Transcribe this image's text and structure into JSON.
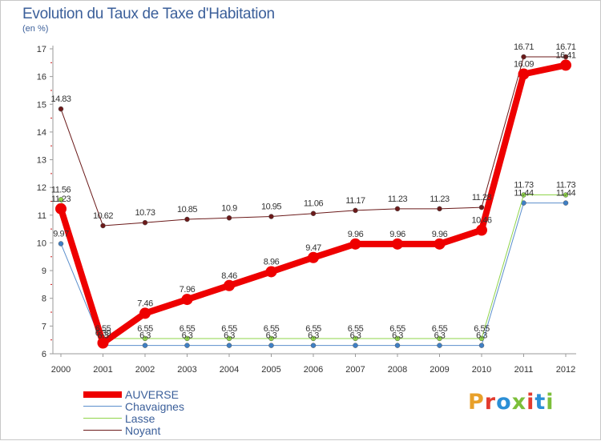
{
  "title": "Evolution du Taux de Taxe d'Habitation",
  "subtitle": "(en %)",
  "logo_text": "Proxiti",
  "logo_colors": [
    "#e8a02a",
    "#e23b2e",
    "#2b8fd6",
    "#7cbf3a",
    "#e23b2e",
    "#2b8fd6",
    "#7cbf3a"
  ],
  "chart_data": {
    "type": "line",
    "title": "Evolution du Taux de Taxe d'Habitation",
    "ylabel": "(en %)",
    "xlabel": "",
    "ylim": [
      6,
      17
    ],
    "yticks": [
      6,
      7,
      8,
      9,
      10,
      11,
      12,
      13,
      14,
      15,
      16,
      17
    ],
    "grid": false,
    "legend_position": "bottom-left",
    "x": [
      "2000",
      "2001",
      "2002",
      "2003",
      "2004",
      "2005",
      "2006",
      "2007",
      "2008",
      "2009",
      "2010",
      "2011",
      "2012"
    ],
    "series": [
      {
        "name": "Noyant",
        "color": "#6b1a1a",
        "values": [
          14.83,
          10.62,
          10.73,
          10.85,
          10.9,
          10.95,
          11.06,
          11.17,
          11.23,
          11.23,
          11.28,
          16.71,
          16.71
        ]
      },
      {
        "name": "Chavaignes",
        "color": "#5b8fcc",
        "values": [
          9.97,
          6.3,
          6.3,
          6.3,
          6.3,
          6.3,
          6.3,
          6.3,
          6.3,
          6.3,
          6.3,
          11.44,
          11.44
        ]
      },
      {
        "name": "Lasse",
        "color": "#8fd44a",
        "values": [
          11.56,
          6.55,
          6.55,
          6.55,
          6.55,
          6.55,
          6.55,
          6.55,
          6.55,
          6.55,
          6.55,
          11.73,
          11.73
        ]
      },
      {
        "name": "AUVERSE",
        "color": "#ee0000",
        "values": [
          11.23,
          6.39,
          7.46,
          7.96,
          8.46,
          8.96,
          9.47,
          9.96,
          9.96,
          9.96,
          10.46,
          16.09,
          16.41
        ]
      }
    ],
    "labels": {
      "Noyant": [
        "14.83",
        "10.62",
        "10.73",
        "10.85",
        "10.9",
        "10.95",
        "11.06",
        "11.17",
        "11.23",
        "11.23",
        "11.28",
        "16.71",
        "16.71"
      ],
      "Chavaignes": [
        "9.97",
        "6.3",
        "6.3",
        "6.3",
        "6.3",
        "6.3",
        "6.3",
        "6.3",
        "6.3",
        "6.3",
        "6.3",
        "11.44",
        "11.44"
      ],
      "Lasse": [
        "11.56",
        "6.55",
        "6.55",
        "6.55",
        "6.55",
        "6.55",
        "6.55",
        "6.55",
        "6.55",
        "6.55",
        "6.55",
        "11.73",
        "11.73"
      ],
      "AUVERSE": [
        "11.23",
        "6.39",
        "7.46",
        "7.96",
        "8.46",
        "8.96",
        "9.47",
        "9.96",
        "9.96",
        "9.96",
        "10.46",
        "16.09",
        "16.41"
      ]
    },
    "legend": [
      "AUVERSE",
      "Chavaignes",
      "Lasse",
      "Noyant"
    ]
  }
}
